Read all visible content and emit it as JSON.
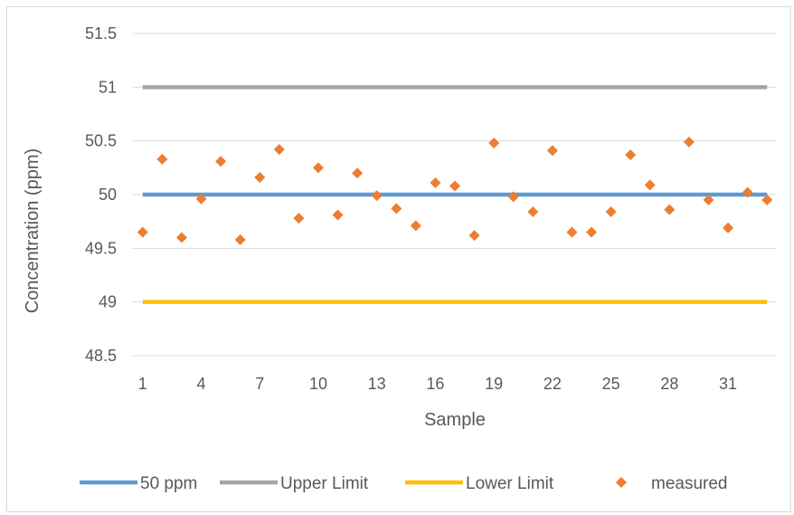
{
  "chart_data": {
    "type": "line",
    "title": "",
    "xlabel": "Sample",
    "ylabel": "Concentration (ppm)",
    "ylim": [
      48.5,
      51.5
    ],
    "yticks": [
      "48.5",
      "49",
      "49.5",
      "50",
      "50.5",
      "51",
      "51.5"
    ],
    "xticks": [
      "1",
      "4",
      "7",
      "10",
      "13",
      "16",
      "19",
      "22",
      "25",
      "28",
      "31"
    ],
    "x": [
      1,
      2,
      3,
      4,
      5,
      6,
      7,
      8,
      9,
      10,
      11,
      12,
      13,
      14,
      15,
      16,
      17,
      18,
      19,
      20,
      21,
      22,
      23,
      24,
      25,
      26,
      27,
      28,
      29,
      30,
      31,
      32,
      33
    ],
    "grid": true,
    "legend_position": "bottom",
    "series": [
      {
        "name": "50 ppm",
        "kind": "line",
        "value": 50,
        "color": "#5b9bd5"
      },
      {
        "name": "Upper Limit",
        "kind": "line",
        "value": 51,
        "color": "#a5a5a5"
      },
      {
        "name": "Lower Limit",
        "kind": "line",
        "value": 49,
        "color": "#ffc000"
      },
      {
        "name": "measured",
        "kind": "scatter",
        "color": "#ed7d31",
        "values": [
          49.65,
          50.33,
          49.6,
          49.96,
          50.31,
          49.58,
          50.16,
          50.42,
          49.78,
          50.25,
          49.81,
          50.2,
          49.99,
          49.87,
          49.71,
          50.11,
          50.08,
          49.62,
          50.48,
          49.98,
          49.84,
          50.41,
          49.65,
          49.65,
          49.84,
          50.37,
          50.09,
          49.86,
          50.49,
          49.95,
          49.69,
          50.02,
          49.95
        ]
      }
    ]
  }
}
